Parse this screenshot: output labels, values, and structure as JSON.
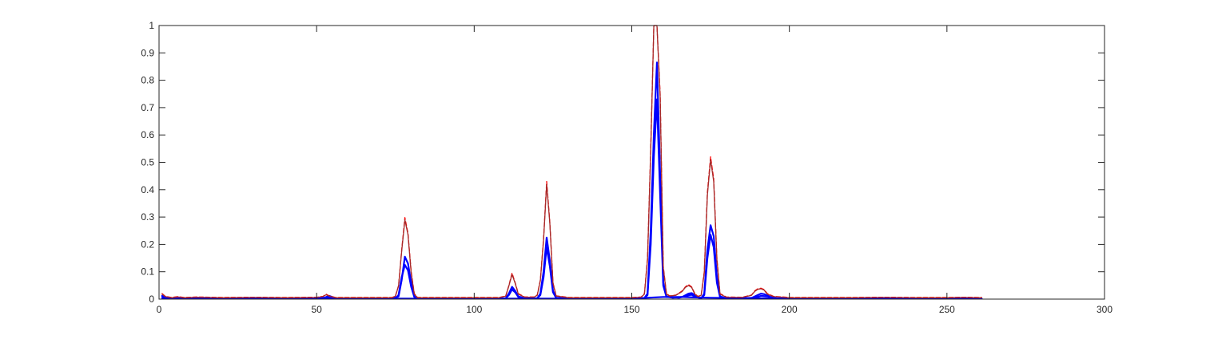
{
  "chart_data": {
    "type": "line",
    "title": "",
    "xlabel": "",
    "ylabel": "",
    "xlim": [
      0,
      300
    ],
    "ylim": [
      0,
      1
    ],
    "x_ticks": [
      0,
      50,
      100,
      150,
      200,
      250,
      300
    ],
    "y_ticks": [
      0,
      0.1,
      0.2,
      0.3,
      0.4,
      0.5,
      0.6,
      0.7,
      0.8,
      0.9,
      1
    ],
    "grid": false,
    "legend": "none",
    "box": true,
    "colors": {
      "axes": "#262626",
      "blue": "#0000ff",
      "red": "#ff0000",
      "brown": "#a52a2a"
    },
    "series": [
      {
        "color": "#0000ff",
        "width": 2.2,
        "style": "solid",
        "points": [
          [
            1,
            0.012
          ],
          [
            3,
            0.004
          ],
          [
            8,
            0.003
          ],
          [
            20,
            0.002
          ],
          [
            40,
            0.002
          ],
          [
            50,
            0.002
          ],
          [
            52,
            0.003
          ],
          [
            54,
            0.012
          ],
          [
            56,
            0.003
          ],
          [
            60,
            0.002
          ],
          [
            74,
            0.002
          ],
          [
            76,
            0.01
          ],
          [
            77,
            0.07
          ],
          [
            78,
            0.155
          ],
          [
            79,
            0.13
          ],
          [
            80,
            0.06
          ],
          [
            81,
            0.01
          ],
          [
            82,
            0.002
          ],
          [
            100,
            0.002
          ],
          [
            110,
            0.003
          ],
          [
            111,
            0.02
          ],
          [
            112,
            0.045
          ],
          [
            113,
            0.03
          ],
          [
            114,
            0.01
          ],
          [
            116,
            0.003
          ],
          [
            120,
            0.003
          ],
          [
            121,
            0.02
          ],
          [
            122,
            0.1
          ],
          [
            123,
            0.225
          ],
          [
            124,
            0.14
          ],
          [
            125,
            0.03
          ],
          [
            126,
            0.005
          ],
          [
            130,
            0.002
          ],
          [
            150,
            0.003
          ],
          [
            154,
            0.004
          ],
          [
            155,
            0.02
          ],
          [
            156,
            0.25
          ],
          [
            157,
            0.6
          ],
          [
            158,
            0.865
          ],
          [
            159,
            0.45
          ],
          [
            160,
            0.06
          ],
          [
            161,
            0.01
          ],
          [
            163,
            0.005
          ],
          [
            166,
            0.008
          ],
          [
            168,
            0.02
          ],
          [
            169,
            0.022
          ],
          [
            170,
            0.015
          ],
          [
            171,
            0.006
          ],
          [
            172,
            0.003
          ],
          [
            173,
            0.02
          ],
          [
            174,
            0.18
          ],
          [
            175,
            0.27
          ],
          [
            176,
            0.23
          ],
          [
            177,
            0.08
          ],
          [
            178,
            0.01
          ],
          [
            180,
            0.003
          ],
          [
            188,
            0.004
          ],
          [
            190,
            0.015
          ],
          [
            191,
            0.02
          ],
          [
            192,
            0.018
          ],
          [
            194,
            0.008
          ],
          [
            196,
            0.003
          ],
          [
            210,
            0.002
          ],
          [
            230,
            0.002
          ],
          [
            250,
            0.002
          ],
          [
            261,
            0.002
          ]
        ]
      },
      {
        "color": "#0000ff",
        "width": 2.2,
        "style": "solid",
        "points": [
          [
            1,
            0.008
          ],
          [
            3,
            0.003
          ],
          [
            10,
            0.002
          ],
          [
            30,
            0.002
          ],
          [
            50,
            0.002
          ],
          [
            54,
            0.008
          ],
          [
            57,
            0.002
          ],
          [
            75,
            0.002
          ],
          [
            76,
            0.015
          ],
          [
            77,
            0.08
          ],
          [
            78,
            0.125
          ],
          [
            79,
            0.105
          ],
          [
            80,
            0.045
          ],
          [
            81,
            0.008
          ],
          [
            82,
            0.002
          ],
          [
            110,
            0.003
          ],
          [
            111,
            0.015
          ],
          [
            112,
            0.035
          ],
          [
            113,
            0.025
          ],
          [
            114,
            0.008
          ],
          [
            116,
            0.002
          ],
          [
            120,
            0.003
          ],
          [
            121,
            0.015
          ],
          [
            122,
            0.08
          ],
          [
            123,
            0.19
          ],
          [
            124,
            0.12
          ],
          [
            125,
            0.025
          ],
          [
            126,
            0.004
          ],
          [
            130,
            0.002
          ],
          [
            150,
            0.002
          ],
          [
            154,
            0.003
          ],
          [
            155,
            0.015
          ],
          [
            156,
            0.2
          ],
          [
            157,
            0.52
          ],
          [
            158,
            0.73
          ],
          [
            159,
            0.38
          ],
          [
            160,
            0.05
          ],
          [
            161,
            0.008
          ],
          [
            165,
            0.005
          ],
          [
            168,
            0.014
          ],
          [
            169,
            0.016
          ],
          [
            170,
            0.01
          ],
          [
            172,
            0.003
          ],
          [
            173,
            0.015
          ],
          [
            174,
            0.15
          ],
          [
            175,
            0.235
          ],
          [
            176,
            0.19
          ],
          [
            177,
            0.06
          ],
          [
            178,
            0.008
          ],
          [
            180,
            0.002
          ],
          [
            189,
            0.005
          ],
          [
            191,
            0.012
          ],
          [
            193,
            0.01
          ],
          [
            195,
            0.004
          ],
          [
            197,
            0.002
          ],
          [
            220,
            0.002
          ],
          [
            261,
            0.002
          ]
        ]
      },
      {
        "color": "#0000ff",
        "width": 2.2,
        "style": "solid",
        "points": [
          [
            1,
            0.002
          ],
          [
            50,
            0.002
          ],
          [
            100,
            0.002
          ],
          [
            150,
            0.002
          ],
          [
            155,
            0.005
          ],
          [
            160,
            0.008
          ],
          [
            166,
            0.008
          ],
          [
            170,
            0.006
          ],
          [
            175,
            0.005
          ],
          [
            200,
            0.002
          ],
          [
            261,
            0.002
          ]
        ]
      },
      {
        "color": "#ff0000",
        "width": 1.3,
        "style": "dashed",
        "points": [
          [
            1,
            0.02
          ],
          [
            2,
            0.01
          ],
          [
            4,
            0.006
          ],
          [
            6,
            0.009
          ],
          [
            8,
            0.006
          ],
          [
            12,
            0.008
          ],
          [
            20,
            0.006
          ],
          [
            30,
            0.007
          ],
          [
            40,
            0.006
          ],
          [
            50,
            0.007
          ],
          [
            52,
            0.01
          ],
          [
            53,
            0.018
          ],
          [
            54,
            0.012
          ],
          [
            56,
            0.006
          ],
          [
            60,
            0.006
          ],
          [
            74,
            0.006
          ],
          [
            75,
            0.012
          ],
          [
            76,
            0.05
          ],
          [
            77,
            0.18
          ],
          [
            78,
            0.298
          ],
          [
            79,
            0.24
          ],
          [
            80,
            0.1
          ],
          [
            81,
            0.02
          ],
          [
            82,
            0.006
          ],
          [
            90,
            0.006
          ],
          [
            100,
            0.006
          ],
          [
            108,
            0.006
          ],
          [
            110,
            0.012
          ],
          [
            111,
            0.05
          ],
          [
            112,
            0.095
          ],
          [
            113,
            0.06
          ],
          [
            114,
            0.02
          ],
          [
            116,
            0.008
          ],
          [
            119,
            0.008
          ],
          [
            120,
            0.015
          ],
          [
            121,
            0.07
          ],
          [
            122,
            0.22
          ],
          [
            123,
            0.43
          ],
          [
            124,
            0.28
          ],
          [
            125,
            0.06
          ],
          [
            126,
            0.012
          ],
          [
            130,
            0.006
          ],
          [
            140,
            0.006
          ],
          [
            150,
            0.006
          ],
          [
            153,
            0.008
          ],
          [
            154,
            0.02
          ],
          [
            155,
            0.15
          ],
          [
            156,
            0.55
          ],
          [
            157,
            1.0
          ],
          [
            158,
            1.0
          ],
          [
            159,
            0.75
          ],
          [
            160,
            0.12
          ],
          [
            161,
            0.02
          ],
          [
            162,
            0.012
          ],
          [
            164,
            0.015
          ],
          [
            166,
            0.03
          ],
          [
            167,
            0.045
          ],
          [
            168,
            0.053
          ],
          [
            169,
            0.045
          ],
          [
            170,
            0.02
          ],
          [
            171,
            0.01
          ],
          [
            172,
            0.015
          ],
          [
            173,
            0.1
          ],
          [
            174,
            0.39
          ],
          [
            175,
            0.52
          ],
          [
            176,
            0.44
          ],
          [
            177,
            0.15
          ],
          [
            178,
            0.02
          ],
          [
            180,
            0.008
          ],
          [
            185,
            0.007
          ],
          [
            188,
            0.015
          ],
          [
            189,
            0.03
          ],
          [
            190,
            0.038
          ],
          [
            191,
            0.04
          ],
          [
            192,
            0.035
          ],
          [
            193,
            0.02
          ],
          [
            195,
            0.01
          ],
          [
            198,
            0.008
          ],
          [
            200,
            0.006
          ],
          [
            210,
            0.006
          ],
          [
            220,
            0.006
          ],
          [
            230,
            0.007
          ],
          [
            240,
            0.006
          ],
          [
            250,
            0.006
          ],
          [
            255,
            0.007
          ],
          [
            261,
            0.006
          ]
        ]
      },
      {
        "color": "#a52a2a",
        "width": 1.3,
        "style": "solid",
        "points": [
          [
            1,
            0.018
          ],
          [
            2,
            0.009
          ],
          [
            4,
            0.005
          ],
          [
            6,
            0.008
          ],
          [
            8,
            0.005
          ],
          [
            12,
            0.007
          ],
          [
            20,
            0.005
          ],
          [
            30,
            0.006
          ],
          [
            40,
            0.005
          ],
          [
            50,
            0.006
          ],
          [
            52,
            0.009
          ],
          [
            53,
            0.016
          ],
          [
            54,
            0.011
          ],
          [
            56,
            0.005
          ],
          [
            60,
            0.005
          ],
          [
            74,
            0.005
          ],
          [
            75,
            0.011
          ],
          [
            76,
            0.048
          ],
          [
            77,
            0.175
          ],
          [
            78,
            0.29
          ],
          [
            79,
            0.235
          ],
          [
            80,
            0.095
          ],
          [
            81,
            0.018
          ],
          [
            82,
            0.005
          ],
          [
            90,
            0.005
          ],
          [
            100,
            0.005
          ],
          [
            108,
            0.005
          ],
          [
            110,
            0.011
          ],
          [
            111,
            0.048
          ],
          [
            112,
            0.09
          ],
          [
            113,
            0.058
          ],
          [
            114,
            0.018
          ],
          [
            116,
            0.007
          ],
          [
            119,
            0.007
          ],
          [
            120,
            0.014
          ],
          [
            121,
            0.068
          ],
          [
            122,
            0.215
          ],
          [
            123,
            0.42
          ],
          [
            124,
            0.275
          ],
          [
            125,
            0.058
          ],
          [
            126,
            0.011
          ],
          [
            130,
            0.005
          ],
          [
            140,
            0.005
          ],
          [
            150,
            0.005
          ],
          [
            153,
            0.007
          ],
          [
            154,
            0.018
          ],
          [
            155,
            0.145
          ],
          [
            156,
            0.54
          ],
          [
            157,
            1.0
          ],
          [
            158,
            1.0
          ],
          [
            159,
            0.74
          ],
          [
            160,
            0.115
          ],
          [
            161,
            0.018
          ],
          [
            162,
            0.011
          ],
          [
            164,
            0.014
          ],
          [
            166,
            0.028
          ],
          [
            167,
            0.043
          ],
          [
            168,
            0.05
          ],
          [
            169,
            0.043
          ],
          [
            170,
            0.018
          ],
          [
            171,
            0.009
          ],
          [
            172,
            0.014
          ],
          [
            173,
            0.095
          ],
          [
            174,
            0.38
          ],
          [
            175,
            0.51
          ],
          [
            176,
            0.43
          ],
          [
            177,
            0.145
          ],
          [
            178,
            0.018
          ],
          [
            180,
            0.007
          ],
          [
            185,
            0.006
          ],
          [
            188,
            0.014
          ],
          [
            189,
            0.028
          ],
          [
            190,
            0.036
          ],
          [
            191,
            0.038
          ],
          [
            192,
            0.033
          ],
          [
            193,
            0.018
          ],
          [
            195,
            0.009
          ],
          [
            198,
            0.007
          ],
          [
            200,
            0.005
          ],
          [
            210,
            0.005
          ],
          [
            220,
            0.005
          ],
          [
            230,
            0.006
          ],
          [
            240,
            0.005
          ],
          [
            250,
            0.005
          ],
          [
            255,
            0.006
          ],
          [
            261,
            0.005
          ]
        ]
      }
    ]
  }
}
